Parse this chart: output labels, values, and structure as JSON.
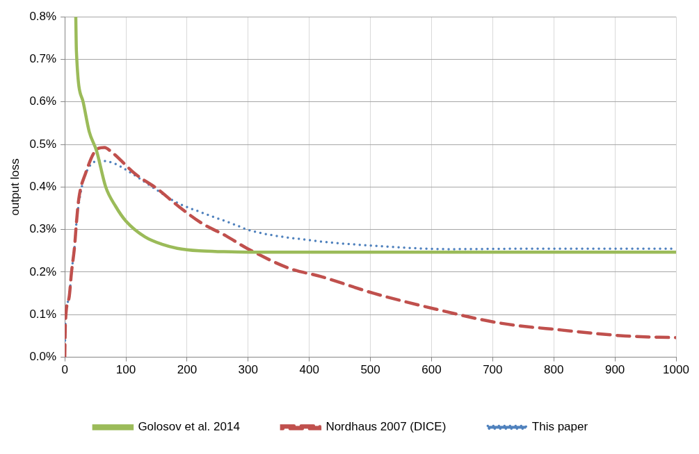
{
  "chart_data": {
    "type": "line",
    "ylabel": "output loss",
    "xlim": [
      0,
      1000
    ],
    "xticks": [
      0,
      100,
      200,
      300,
      400,
      500,
      600,
      700,
      800,
      900,
      1000
    ],
    "ylim": [
      0,
      0.8
    ],
    "yticks": [
      {
        "value": 0,
        "label": "0.0%"
      },
      {
        "value": 0.1,
        "label": "0.1%"
      },
      {
        "value": 0.2,
        "label": "0.2%"
      },
      {
        "value": 0.3,
        "label": "0.3%"
      },
      {
        "value": 0.4,
        "label": "0.4%"
      },
      {
        "value": 0.5,
        "label": "0.5%"
      },
      {
        "value": 0.6,
        "label": "0.6%"
      },
      {
        "value": 0.7,
        "label": "0.7%"
      },
      {
        "value": 0.8,
        "label": "0.8%"
      }
    ],
    "grid": true,
    "legend": "bottom",
    "marker": "none",
    "series": [
      {
        "name": "Golosov et al. 2014",
        "color": "#9bbb59",
        "line_style": "solid",
        "x": [
          18,
          19,
          30,
          40,
          52,
          67,
          83,
          100,
          131,
          160,
          184,
          220,
          260,
          300,
          400,
          500,
          600,
          700,
          800,
          900,
          1000
        ],
        "values": [
          0.8,
          0.72,
          0.6,
          0.53,
          0.485,
          0.4,
          0.355,
          0.32,
          0.283,
          0.265,
          0.256,
          0.25,
          0.248,
          0.247,
          0.247,
          0.247,
          0.247,
          0.247,
          0.247,
          0.247,
          0.247
        ]
      },
      {
        "name": "Nordhaus 2007 (DICE)",
        "color": "#c0504d",
        "line_style": "dashed",
        "x": [
          0,
          1,
          7,
          11,
          16,
          19,
          23,
          34,
          52,
          65,
          76,
          116,
          152,
          184,
          224,
          264,
          298,
          369,
          418,
          506,
          604,
          713,
          812,
          917,
          1000
        ],
        "values": [
          0,
          0.08,
          0.14,
          0.2,
          0.26,
          0.315,
          0.373,
          0.432,
          0.488,
          0.493,
          0.483,
          0.43,
          0.395,
          0.357,
          0.315,
          0.285,
          0.256,
          0.208,
          0.19,
          0.15,
          0.114,
          0.08,
          0.064,
          0.05,
          0.046
        ]
      },
      {
        "name": "This paper",
        "color": "#4f81bd",
        "line_style": "dotted",
        "x": [
          0,
          1,
          7,
          11,
          16,
          19,
          29,
          37,
          43,
          55,
          80,
          104,
          143,
          184,
          224,
          281,
          298,
          407,
          517,
          626,
          750,
          1000
        ],
        "values": [
          0,
          0.08,
          0.14,
          0.2,
          0.26,
          0.315,
          0.408,
          0.44,
          0.453,
          0.462,
          0.456,
          0.437,
          0.4,
          0.363,
          0.34,
          0.31,
          0.3,
          0.274,
          0.261,
          0.254,
          0.255,
          0.255
        ]
      }
    ]
  }
}
